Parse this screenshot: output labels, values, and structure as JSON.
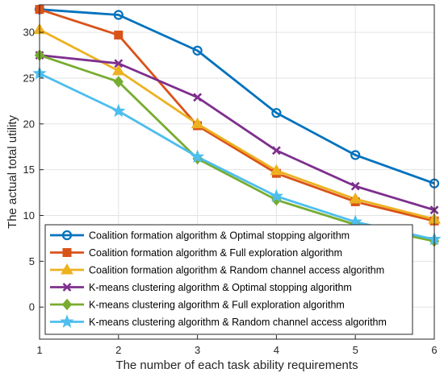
{
  "chart_data": {
    "type": "line",
    "title": "",
    "xlabel": "The number of each task ability requirements",
    "ylabel": "The actual total utility",
    "x": [
      1,
      2,
      3,
      4,
      5,
      6
    ],
    "xlim": [
      1,
      6
    ],
    "ylim": [
      -3.5,
      33
    ],
    "xticks": [
      "1",
      "2",
      "3",
      "4",
      "5",
      "6"
    ],
    "yticks": [
      "0",
      "5",
      "10",
      "15",
      "20",
      "25",
      "30"
    ],
    "grid": true,
    "legend_position": "bottom-left",
    "series": [
      {
        "name": "Coalition formation algorithm & Optimal stopping algorithm",
        "color": "#0072BD",
        "marker": "circle",
        "values": [
          32.5,
          31.9,
          28.0,
          21.2,
          16.6,
          13.5
        ]
      },
      {
        "name": "Coalition formation algorithm & Full exploration algorithm",
        "color": "#D95319",
        "marker": "square",
        "values": [
          32.5,
          29.7,
          19.8,
          14.6,
          11.5,
          9.4
        ]
      },
      {
        "name": "Coalition formation algorithm & Random channel access algorithm",
        "color": "#EDB120",
        "marker": "triangle",
        "values": [
          30.3,
          25.8,
          20.0,
          14.9,
          11.8,
          9.6
        ]
      },
      {
        "name": "K-means clustering algorithm & Optimal stopping algorithm",
        "color": "#7E2F8E",
        "marker": "x",
        "values": [
          27.5,
          26.6,
          22.9,
          17.1,
          13.2,
          10.6
        ]
      },
      {
        "name": "K-means clustering algorithm & Full exploration algorithm",
        "color": "#77AC30",
        "marker": "diamond",
        "values": [
          27.5,
          24.6,
          16.2,
          11.7,
          9.0,
          7.2
        ]
      },
      {
        "name": "K-means clustering algorithm & Random channel access algorithm",
        "color": "#4DBEEE",
        "marker": "star",
        "values": [
          25.5,
          21.4,
          16.4,
          12.1,
          9.3,
          7.4
        ]
      }
    ]
  }
}
